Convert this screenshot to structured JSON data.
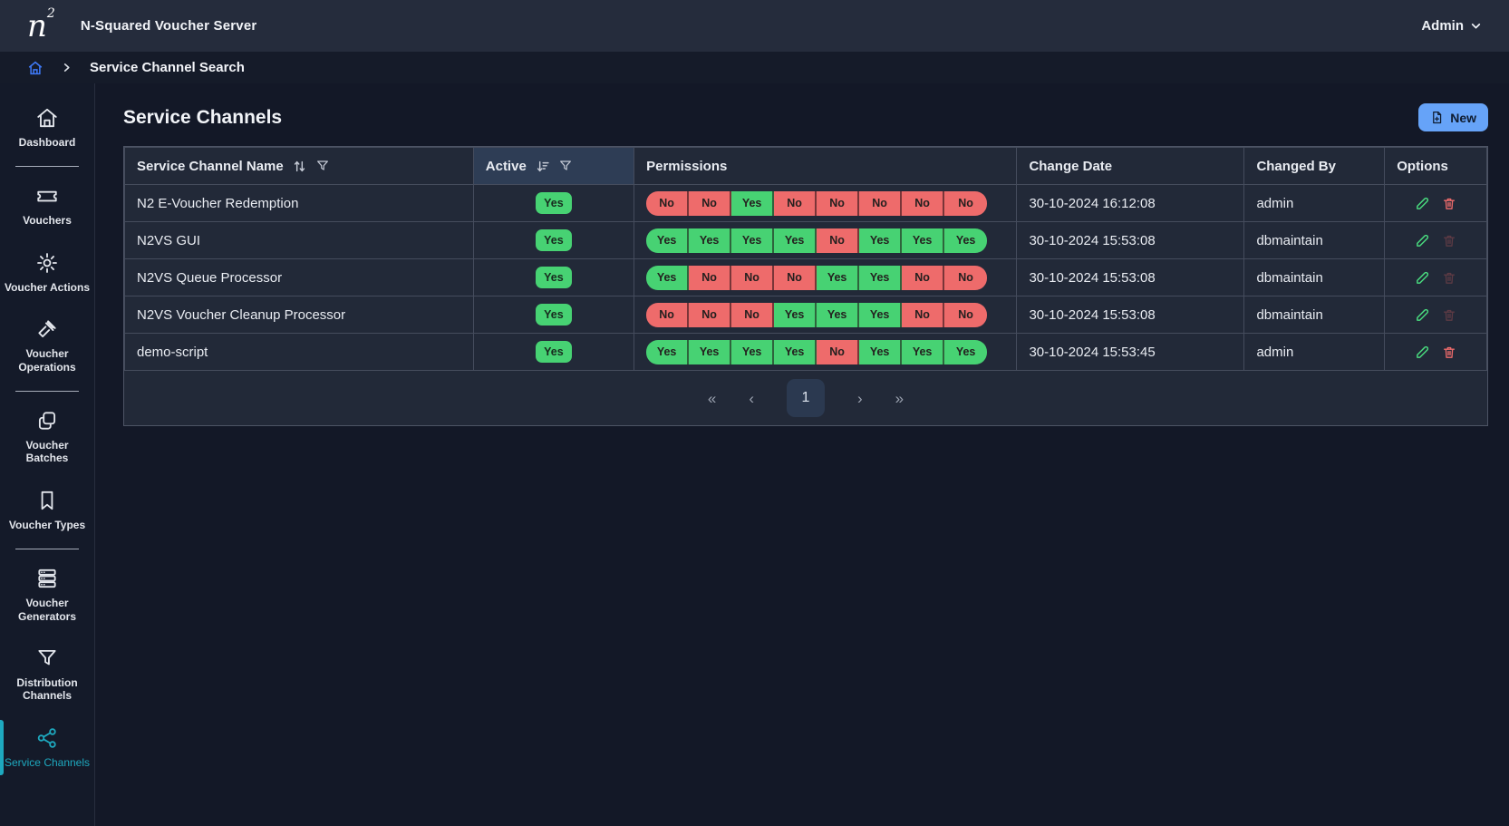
{
  "topbar": {
    "logo_base": "n",
    "logo_sup": "2",
    "title": "N-Squared Voucher Server",
    "user_label": "Admin"
  },
  "breadcrumb": {
    "current": "Service Channel Search"
  },
  "sidebar": {
    "items": [
      {
        "label": "Dashboard",
        "icon": "home",
        "active": false,
        "divider_after": true
      },
      {
        "label": "Vouchers",
        "icon": "ticket",
        "active": false,
        "divider_after": false
      },
      {
        "label": "Voucher Actions",
        "icon": "gear",
        "active": false,
        "divider_after": false
      },
      {
        "label": "Voucher Operations",
        "icon": "gavel",
        "active": false,
        "divider_after": true
      },
      {
        "label": "Voucher Batches",
        "icon": "copy",
        "active": false,
        "divider_after": false
      },
      {
        "label": "Voucher Types",
        "icon": "bookmark",
        "active": false,
        "divider_after": true
      },
      {
        "label": "Voucher Generators",
        "icon": "server",
        "active": false,
        "divider_after": false
      },
      {
        "label": "Distribution Channels",
        "icon": "funnel",
        "active": false,
        "divider_after": false
      },
      {
        "label": "Service Channels",
        "icon": "share",
        "active": true,
        "divider_after": false
      }
    ]
  },
  "main": {
    "title": "Service Channels",
    "new_button_label": "New",
    "new_button_icon": "file-plus",
    "table": {
      "columns": [
        {
          "label": "Service Channel Name",
          "sort": "both",
          "filter": true,
          "highlight": false
        },
        {
          "label": "Active",
          "sort": "desc",
          "filter": true,
          "highlight": true
        },
        {
          "label": "Permissions",
          "sort": "",
          "filter": false,
          "highlight": false
        },
        {
          "label": "Change Date",
          "sort": "",
          "filter": false,
          "highlight": false
        },
        {
          "label": "Changed By",
          "sort": "",
          "filter": false,
          "highlight": false
        },
        {
          "label": "Options",
          "sort": "",
          "filter": false,
          "highlight": false
        }
      ],
      "rows": [
        {
          "name": "N2 E-Voucher Redemption",
          "active": "Yes",
          "permissions": [
            "No",
            "No",
            "Yes",
            "No",
            "No",
            "No",
            "No",
            "No"
          ],
          "change_date": "30-10-2024 16:12:08",
          "changed_by": "admin",
          "delete_enabled": true
        },
        {
          "name": "N2VS GUI",
          "active": "Yes",
          "permissions": [
            "Yes",
            "Yes",
            "Yes",
            "Yes",
            "No",
            "Yes",
            "Yes",
            "Yes"
          ],
          "change_date": "30-10-2024 15:53:08",
          "changed_by": "dbmaintain",
          "delete_enabled": false
        },
        {
          "name": "N2VS Queue Processor",
          "active": "Yes",
          "permissions": [
            "Yes",
            "No",
            "No",
            "No",
            "Yes",
            "Yes",
            "No",
            "No"
          ],
          "change_date": "30-10-2024 15:53:08",
          "changed_by": "dbmaintain",
          "delete_enabled": false
        },
        {
          "name": "N2VS Voucher Cleanup Processor",
          "active": "Yes",
          "permissions": [
            "No",
            "No",
            "No",
            "Yes",
            "Yes",
            "Yes",
            "No",
            "No"
          ],
          "change_date": "30-10-2024 15:53:08",
          "changed_by": "dbmaintain",
          "delete_enabled": false
        },
        {
          "name": "demo-script",
          "active": "Yes",
          "permissions": [
            "Yes",
            "Yes",
            "Yes",
            "Yes",
            "No",
            "Yes",
            "Yes",
            "Yes"
          ],
          "change_date": "30-10-2024 15:53:45",
          "changed_by": "admin",
          "delete_enabled": true
        }
      ],
      "options_icons": [
        "pencil",
        "trash"
      ]
    },
    "pagination": {
      "first_label": "«",
      "prev_label": "‹",
      "current_page": "1",
      "next_label": "›",
      "last_label": "»"
    }
  },
  "colors": {
    "accent_teal": "#1ea9bf",
    "badge_yes_green": "#47d273",
    "badge_no_red": "#ee6b6b",
    "new_button_blue": "#66a3f8",
    "breadcrumb_home_blue": "#3f7bfa",
    "active_column_header": "#2e3d55",
    "panel_background": "#222938",
    "topbar_background": "#252c3c"
  }
}
